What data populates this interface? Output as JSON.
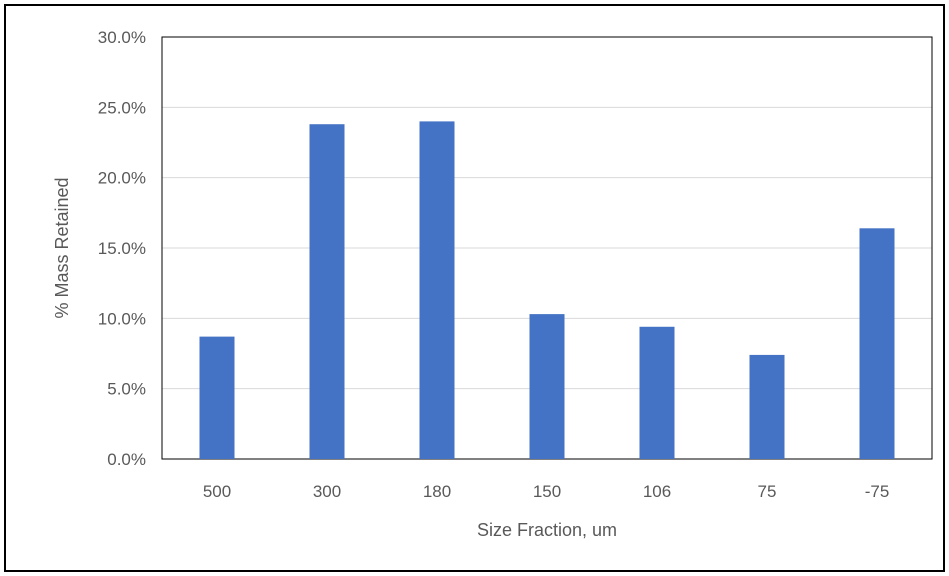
{
  "chart_data": {
    "type": "bar",
    "categories": [
      "500",
      "300",
      "180",
      "150",
      "106",
      "75",
      "-75"
    ],
    "values": [
      8.7,
      23.8,
      24.0,
      10.3,
      9.4,
      7.4,
      16.4
    ],
    "value_unit": "%",
    "xlabel": "Size Fraction, um",
    "ylabel": "% Mass Retained",
    "ylim": [
      0,
      30
    ],
    "yticks": [
      "0.0%",
      "5.0%",
      "10.0%",
      "15.0%",
      "20.0%",
      "25.0%",
      "30.0%"
    ],
    "grid": true,
    "legend": "none",
    "colors": {
      "bar": "#4472C4",
      "grid": "#D9D9D9",
      "text": "#595959",
      "plot_border": "#000000"
    }
  }
}
